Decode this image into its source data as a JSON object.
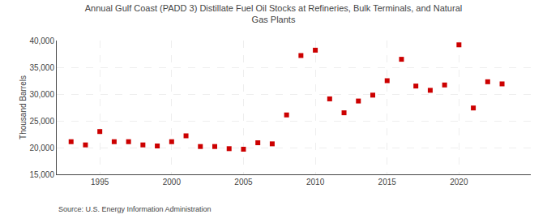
{
  "chart_data": {
    "type": "scatter",
    "title": "Annual Gulf Coast (PADD 3) Distillate Fuel Oil Stocks at Refineries, Bulk Terminals, and Natural\nGas Plants",
    "ylabel": "Thousand Barrels",
    "source": "Source: U.S. Energy Information Administration",
    "color": "#cc0000",
    "marker": "square",
    "x": [
      1993,
      1994,
      1995,
      1996,
      1997,
      1998,
      1999,
      2000,
      2001,
      2002,
      2003,
      2004,
      2005,
      2006,
      2007,
      2008,
      2009,
      2010,
      2011,
      2012,
      2013,
      2014,
      2015,
      2016,
      2017,
      2018,
      2019,
      2020,
      2021,
      2022,
      2023
    ],
    "values": [
      21100,
      20500,
      23000,
      21100,
      21100,
      20500,
      20300,
      21100,
      22200,
      20200,
      20200,
      19800,
      19700,
      20900,
      20700,
      26100,
      37200,
      38200,
      29100,
      26500,
      28700,
      29800,
      32500,
      36500,
      31500,
      30700,
      31700,
      39200,
      27400,
      32300,
      31900
    ],
    "xlim": [
      1992,
      2025
    ],
    "xticks": [
      1995,
      2000,
      2005,
      2010,
      2015,
      2020
    ],
    "ylim": [
      15000,
      40000
    ],
    "yticks": [
      {
        "value": 15000,
        "label": "15,000"
      },
      {
        "value": 20000,
        "label": "20,000"
      },
      {
        "value": 25000,
        "label": "25,000"
      },
      {
        "value": 30000,
        "label": "30,000"
      },
      {
        "value": 35000,
        "label": "35,000"
      },
      {
        "value": 40000,
        "label": "40,000"
      }
    ],
    "grid": true
  }
}
